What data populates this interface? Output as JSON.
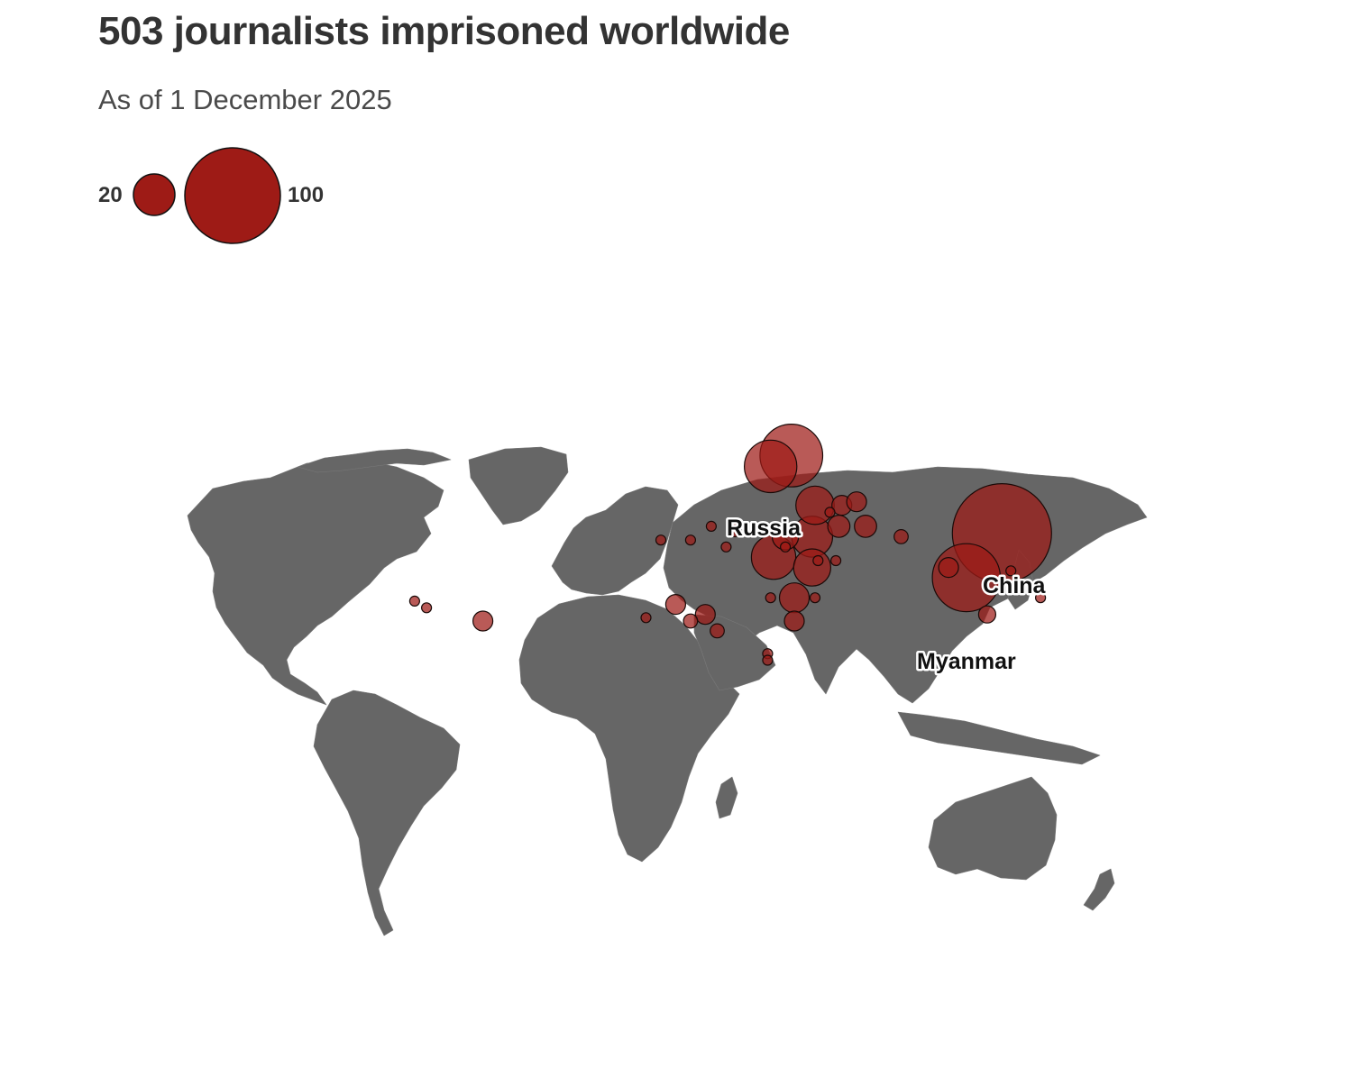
{
  "title": "503 journalists imprisoned worldwide",
  "subtitle": "As of 1 December 2025",
  "legend": {
    "small_value": "20",
    "large_value": "100",
    "bubble_color": "#9e1b16"
  },
  "colors": {
    "land": "#666666",
    "bubble": "#9e1b16",
    "background": "#ffffff"
  },
  "labels": {
    "russia": "Russia",
    "china": "China",
    "myanmar": "Myanmar"
  },
  "chart_data": {
    "type": "proportional-symbol-map",
    "title": "503 journalists imprisoned worldwide",
    "subtitle": "As of 1 December 2025",
    "total": 503,
    "size_legend": [
      20,
      100
    ],
    "labeled_countries": [
      {
        "name": "China",
        "lon": 108,
        "lat": 34
      },
      {
        "name": "Russia",
        "lon": 37,
        "lat": 56
      },
      {
        "name": "Myanmar",
        "lon": 96,
        "lat": 21
      }
    ],
    "points": [
      {
        "lon": 108,
        "lat": 34,
        "value": 100
      },
      {
        "lon": 96,
        "lat": 21,
        "value": 47
      },
      {
        "lon": 30,
        "lat": 53,
        "value": 28
      },
      {
        "lon": 37,
        "lat": 56,
        "value": 40
      },
      {
        "lon": 31,
        "lat": 27,
        "value": 20
      },
      {
        "lon": 44,
        "lat": 33,
        "value": 17
      },
      {
        "lon": 45,
        "lat": 42,
        "value": 15
      },
      {
        "lon": 44,
        "lat": 24,
        "value": 14
      },
      {
        "lon": 38,
        "lat": 15,
        "value": 9
      },
      {
        "lon": 35,
        "lat": 33,
        "value": 7
      },
      {
        "lon": 62,
        "lat": 36,
        "value": 5
      },
      {
        "lon": 53,
        "lat": 36,
        "value": 5
      },
      {
        "lon": 54,
        "lat": 42,
        "value": 4
      },
      {
        "lon": 59,
        "lat": 43,
        "value": 4
      },
      {
        "lon": 90,
        "lat": 24,
        "value": 4
      },
      {
        "lon": 103,
        "lat": 10,
        "value": 3
      },
      {
        "lon": 74,
        "lat": 33,
        "value": 2
      },
      {
        "lon": 111,
        "lat": 23,
        "value": 1
      },
      {
        "lon": 121,
        "lat": 15,
        "value": 1
      },
      {
        "lon": -67,
        "lat": 8,
        "value": 4
      },
      {
        "lon": -2,
        "lat": 13,
        "value": 4
      },
      {
        "lon": 8,
        "lat": 10,
        "value": 4
      },
      {
        "lon": 3,
        "lat": 8,
        "value": 2
      },
      {
        "lon": 12,
        "lat": 5,
        "value": 2
      },
      {
        "lon": 38,
        "lat": 8,
        "value": 4
      },
      {
        "lon": 30,
        "lat": 15,
        "value": 1
      },
      {
        "lon": 45,
        "lat": 15,
        "value": 1
      },
      {
        "lon": 18,
        "lat": 35,
        "value": 2
      },
      {
        "lon": 10,
        "lat": 36,
        "value": 1
      },
      {
        "lon": 3,
        "lat": 32,
        "value": 1
      },
      {
        "lon": -7,
        "lat": 32,
        "value": 1
      },
      {
        "lon": 15,
        "lat": 30,
        "value": 1
      },
      {
        "lon": 29,
        "lat": -2,
        "value": 1
      },
      {
        "lon": 29,
        "lat": -4,
        "value": 1
      },
      {
        "lon": -12,
        "lat": 9,
        "value": 1
      },
      {
        "lon": -90,
        "lat": 14,
        "value": 1
      },
      {
        "lon": -86,
        "lat": 12,
        "value": 1
      },
      {
        "lon": 35,
        "lat": 30,
        "value": 1
      },
      {
        "lon": 46,
        "lat": 26,
        "value": 1
      },
      {
        "lon": 52,
        "lat": 26,
        "value": 1
      },
      {
        "lon": 50,
        "lat": 40,
        "value": 1
      }
    ]
  }
}
